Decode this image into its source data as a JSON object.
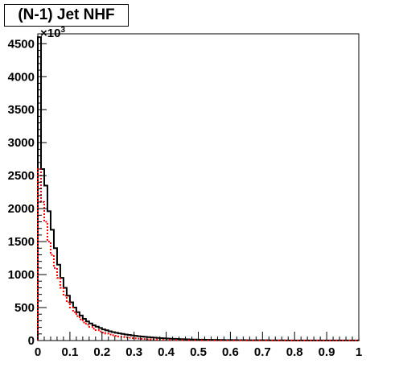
{
  "chart_data": {
    "type": "histogram",
    "title": "(N-1) Jet NHF",
    "xlabel": "",
    "ylabel": "",
    "y_multiplier_label": "×10",
    "y_multiplier_exponent": "3",
    "xlim": [
      0,
      1
    ],
    "ylim": [
      0,
      4650
    ],
    "x_ticks": [
      "0",
      "0.1",
      "0.2",
      "0.3",
      "0.4",
      "0.5",
      "0.6",
      "0.7",
      "0.8",
      "0.9",
      "1"
    ],
    "y_ticks": [
      "0",
      "500",
      "1000",
      "1500",
      "2000",
      "2500",
      "3000",
      "3500",
      "4000",
      "4500"
    ],
    "bin_width": 0.01,
    "series": [
      {
        "color": "#000000",
        "style": "solid",
        "values": [
          4600,
          2600,
          2350,
          1960,
          1680,
          1400,
          1150,
          950,
          800,
          680,
          580,
          500,
          430,
          380,
          330,
          290,
          260,
          230,
          210,
          190,
          170,
          155,
          140,
          128,
          118,
          108,
          100,
          92,
          85,
          78,
          72,
          66,
          61,
          56,
          52,
          48,
          44,
          40,
          37,
          34,
          31,
          28,
          26,
          24,
          22,
          20,
          18,
          17,
          16,
          15,
          14,
          13,
          12,
          11,
          10,
          10,
          9,
          9,
          8,
          8,
          7,
          7,
          6,
          6,
          6,
          5,
          5,
          5,
          4,
          4,
          4,
          4,
          3,
          3,
          3,
          3,
          3,
          2,
          2,
          2,
          2,
          2,
          2,
          2,
          2,
          1,
          1,
          1,
          1,
          1,
          1,
          1,
          1,
          1,
          1,
          1,
          1,
          1,
          1,
          1
        ]
      },
      {
        "color": "#ff0000",
        "style": "dotted",
        "values": [
          2600,
          2100,
          1800,
          1500,
          1300,
          1100,
          950,
          800,
          680,
          580,
          500,
          430,
          370,
          320,
          275,
          240,
          208,
          180,
          158,
          138,
          120,
          105,
          92,
          81,
          71,
          62,
          55,
          48,
          42,
          37,
          33,
          29,
          26,
          23,
          20,
          18,
          16,
          14,
          12,
          11,
          10,
          9,
          8,
          7,
          6,
          6,
          5,
          5,
          4,
          4,
          4,
          3,
          3,
          3,
          3,
          2,
          2,
          2,
          2,
          2,
          2,
          2,
          1,
          1,
          1,
          1,
          1,
          1,
          1,
          1,
          1,
          1,
          1,
          1,
          1,
          1,
          1,
          1,
          1,
          1,
          1,
          1,
          1,
          1,
          1,
          1,
          1,
          1,
          1,
          1,
          1,
          1,
          1,
          1,
          1,
          1,
          1,
          1,
          1,
          1
        ]
      }
    ]
  }
}
